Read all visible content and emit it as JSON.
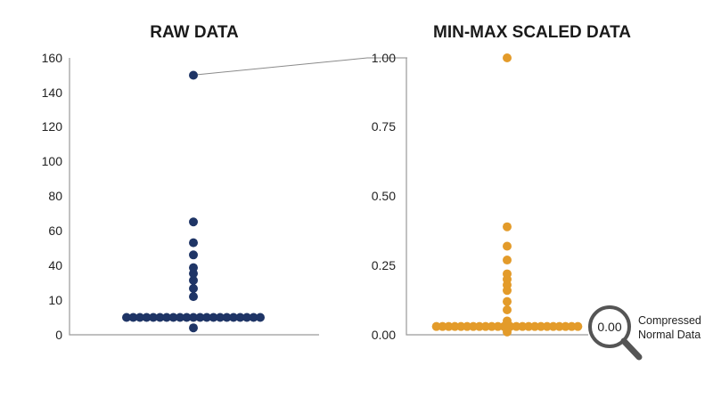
{
  "colors": {
    "raw": "#1f3566",
    "scaled": "#e39b2a",
    "axis": "#9a9a9a",
    "magnifier": "#555555"
  },
  "chart_data": [
    {
      "type": "scatter",
      "title": "RAW DATA",
      "ylim": [
        0,
        160
      ],
      "ytick_labels": [
        "0",
        "10",
        "40",
        "60",
        "80",
        "100",
        "120",
        "140",
        "160"
      ],
      "horizontal_cluster": {
        "y": 5,
        "count": 21
      },
      "vertical_points": [
        2,
        13,
        20,
        27,
        33,
        38,
        46,
        53,
        65
      ],
      "outlier": 150,
      "grid": false
    },
    {
      "type": "scatter",
      "title": "MIN-MAX SCALED DATA",
      "ylim": [
        0,
        1
      ],
      "ytick_labels": [
        "0.00",
        "0.25",
        "0.50",
        "0.75",
        "1.00"
      ],
      "horizontal_cluster": {
        "y": 0.03,
        "count": 24
      },
      "vertical_points": [
        0.01,
        0.05,
        0.09,
        0.12,
        0.16,
        0.18,
        0.2,
        0.22,
        0.27,
        0.32,
        0.39
      ],
      "outlier": 1.0,
      "grid": false
    }
  ],
  "callout": {
    "value": "0.00",
    "label_line1": "Compressed",
    "label_line2": "Normal Data"
  }
}
